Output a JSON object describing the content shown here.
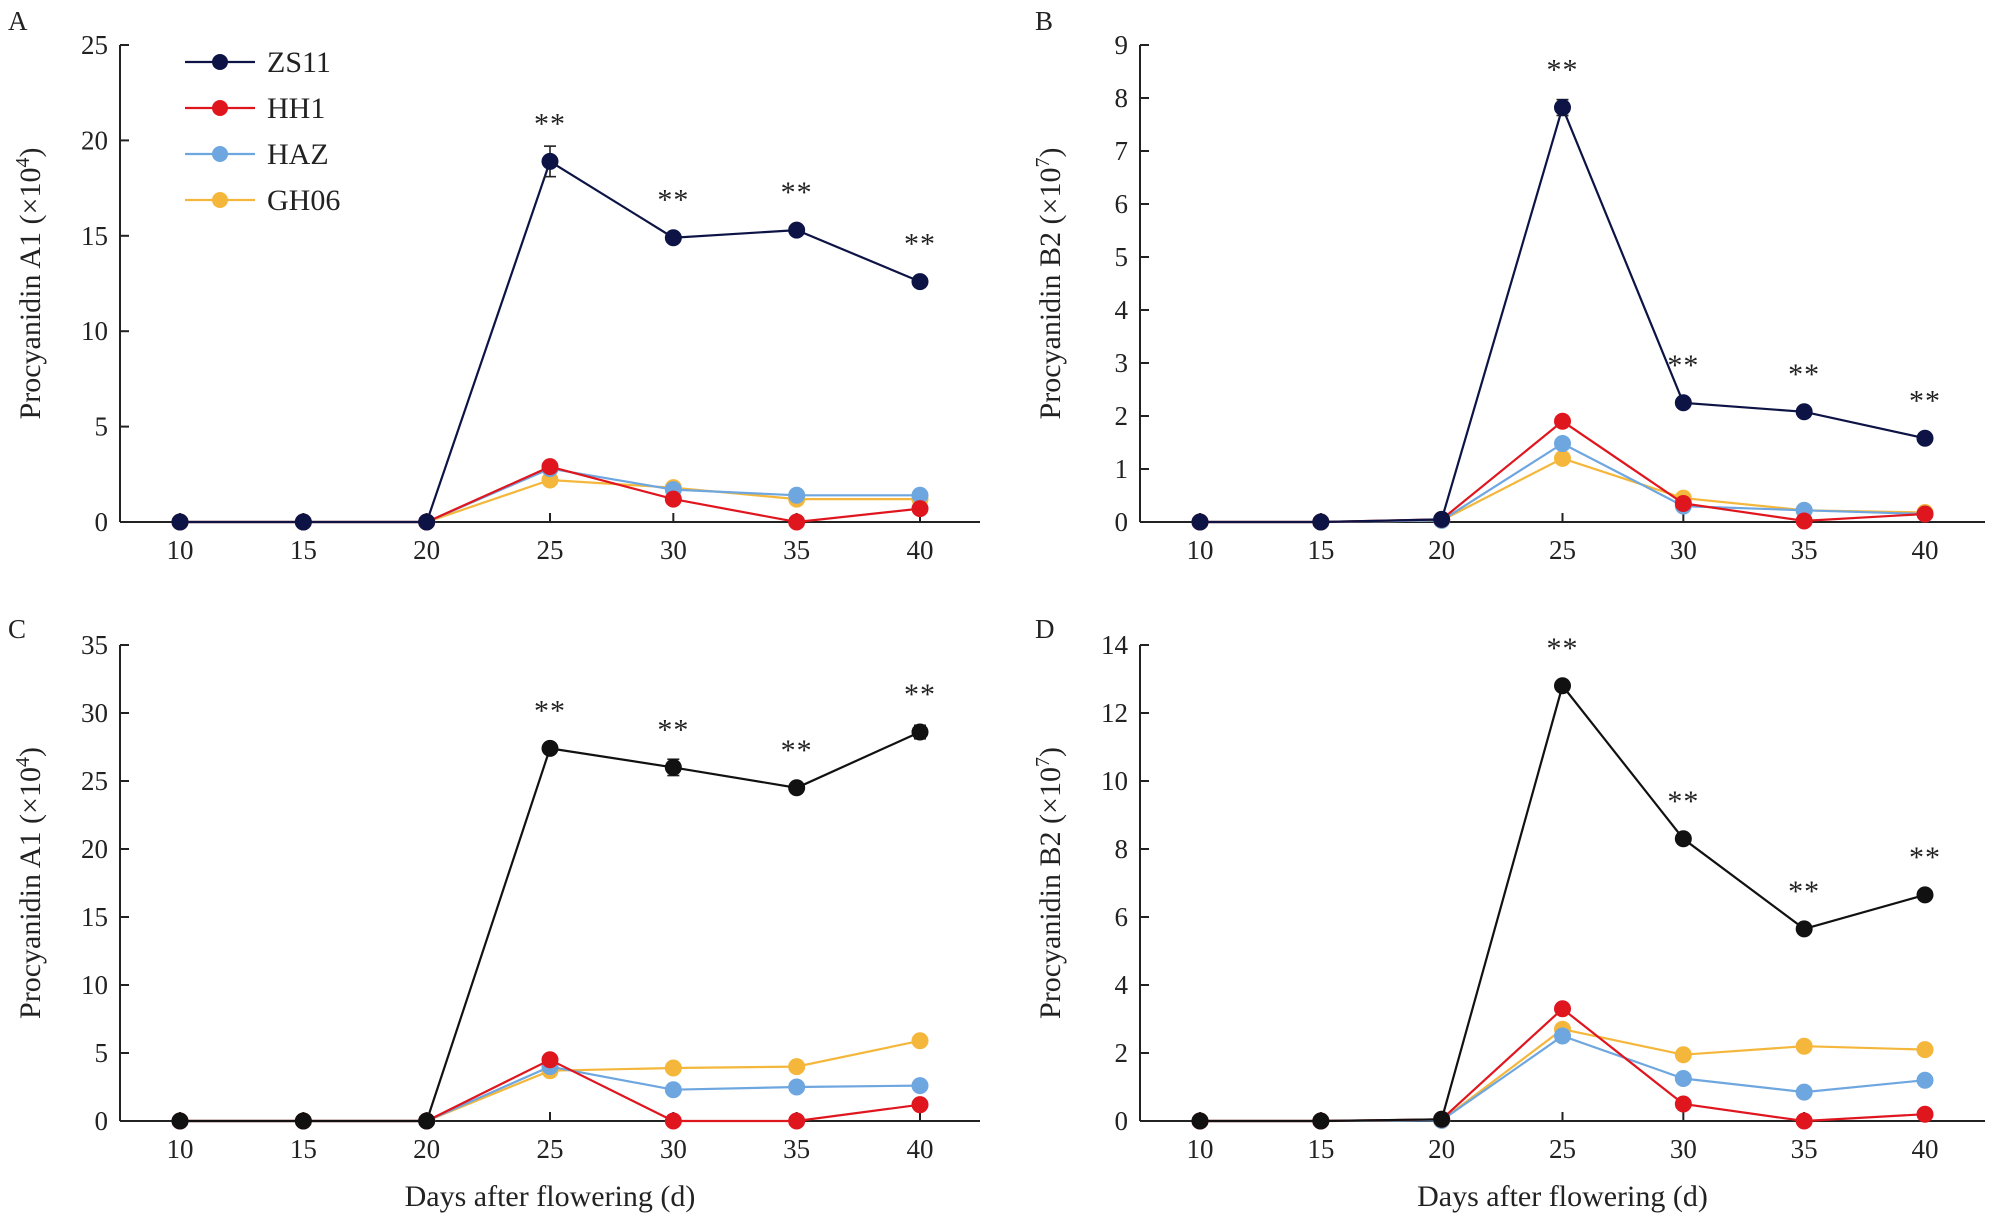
{
  "chart_data": [
    {
      "panel": "A",
      "type": "line",
      "xlabel": "",
      "ylabel": "Procyanidin A1 (×10⁴)",
      "ylabel_main": "Procyanidin A1 (×10",
      "ylabel_exp": "4",
      "ylim": [
        0,
        25
      ],
      "yticks": [
        0,
        5,
        10,
        15,
        20,
        25
      ],
      "x": [
        10,
        15,
        20,
        25,
        30,
        35,
        40
      ],
      "xticks": [
        10,
        15,
        20,
        25,
        30,
        35,
        40
      ],
      "series": [
        {
          "name": "ZS11",
          "color": "#0d1445",
          "values": [
            0,
            0,
            0,
            18.9,
            14.9,
            15.3,
            12.6
          ],
          "errors": [
            0,
            0,
            0,
            0.8,
            0.2,
            0.2,
            0.2
          ]
        },
        {
          "name": "HH1",
          "color": "#e0161f",
          "values": [
            0,
            0,
            0,
            2.9,
            1.2,
            0,
            0.7
          ]
        },
        {
          "name": "HAZ",
          "color": "#6ea6e0",
          "values": [
            0,
            0,
            0,
            2.8,
            1.7,
            1.4,
            1.4
          ]
        },
        {
          "name": "GH06",
          "color": "#f4b73b",
          "values": [
            0,
            0,
            0,
            2.2,
            1.8,
            1.2,
            1.2
          ]
        }
      ],
      "annotations": [
        {
          "x": 25,
          "y": 18.9,
          "text": "**"
        },
        {
          "x": 30,
          "y": 14.9,
          "text": "**"
        },
        {
          "x": 35,
          "y": 15.3,
          "text": "**"
        },
        {
          "x": 40,
          "y": 12.6,
          "text": "**"
        }
      ]
    },
    {
      "panel": "B",
      "type": "line",
      "xlabel": "",
      "ylabel": "Procyanidin B2 (×10⁷)",
      "ylabel_main": "Procyanidin B2 (×10",
      "ylabel_exp": "7",
      "ylim": [
        0,
        9
      ],
      "yticks": [
        0,
        1,
        2,
        3,
        4,
        5,
        6,
        7,
        8,
        9
      ],
      "x": [
        10,
        15,
        20,
        25,
        30,
        35,
        40
      ],
      "xticks": [
        10,
        15,
        20,
        25,
        30,
        35,
        40
      ],
      "series": [
        {
          "name": "ZS11",
          "color": "#0d1445",
          "values": [
            0,
            0,
            0.05,
            7.82,
            2.25,
            2.08,
            1.58
          ],
          "errors": [
            0,
            0,
            0,
            0.15,
            0.04,
            0.04,
            0.04
          ]
        },
        {
          "name": "HH1",
          "color": "#e0161f",
          "values": [
            0,
            0,
            0.05,
            1.9,
            0.35,
            0.02,
            0.15
          ]
        },
        {
          "name": "HAZ",
          "color": "#6ea6e0",
          "values": [
            0,
            0,
            0.03,
            1.48,
            0.3,
            0.22,
            0.15
          ]
        },
        {
          "name": "GH06",
          "color": "#f4b73b",
          "values": [
            0,
            0,
            0.03,
            1.2,
            0.45,
            0.22,
            0.18
          ]
        }
      ],
      "annotations": [
        {
          "x": 25,
          "y": 7.82,
          "text": "**"
        },
        {
          "x": 30,
          "y": 2.25,
          "text": "**"
        },
        {
          "x": 35,
          "y": 2.08,
          "text": "**"
        },
        {
          "x": 40,
          "y": 1.58,
          "text": "**"
        }
      ]
    },
    {
      "panel": "C",
      "type": "line",
      "xlabel": "Days after flowering (d)",
      "ylabel": "Procyanidin A1 (×10⁴)",
      "ylabel_main": "Procyanidin A1 (×10",
      "ylabel_exp": "4",
      "ylim": [
        0,
        35
      ],
      "yticks": [
        0,
        5,
        10,
        15,
        20,
        25,
        30,
        35
      ],
      "x": [
        10,
        15,
        20,
        25,
        30,
        35,
        40
      ],
      "xticks": [
        10,
        15,
        20,
        25,
        30,
        35,
        40
      ],
      "series": [
        {
          "name": "ZS11",
          "color": "#111111",
          "values": [
            0,
            0,
            0,
            27.4,
            26.0,
            24.5,
            28.6
          ],
          "errors": [
            0,
            0,
            0,
            0.3,
            0.6,
            0.4,
            0.5
          ]
        },
        {
          "name": "HH1",
          "color": "#e0161f",
          "values": [
            0,
            0,
            0,
            4.5,
            0,
            0,
            1.2
          ]
        },
        {
          "name": "HAZ",
          "color": "#6ea6e0",
          "values": [
            0,
            0,
            0,
            4.0,
            2.3,
            2.5,
            2.6
          ]
        },
        {
          "name": "GH06",
          "color": "#f4b73b",
          "values": [
            0,
            0,
            0,
            3.7,
            3.9,
            4.0,
            5.9
          ]
        }
      ],
      "annotations": [
        {
          "x": 25,
          "y": 27.4,
          "text": "**"
        },
        {
          "x": 30,
          "y": 26.0,
          "text": "**"
        },
        {
          "x": 35,
          "y": 24.5,
          "text": "**"
        },
        {
          "x": 40,
          "y": 28.6,
          "text": "**"
        }
      ]
    },
    {
      "panel": "D",
      "type": "line",
      "xlabel": "Days after flowering (d)",
      "ylabel": "Procyanidin B2 (×10⁷)",
      "ylabel_main": "Procyanidin B2 (×10",
      "ylabel_exp": "7",
      "ylim": [
        0,
        14
      ],
      "yticks": [
        0,
        2,
        4,
        6,
        8,
        10,
        12,
        14
      ],
      "x": [
        10,
        15,
        20,
        25,
        30,
        35,
        40
      ],
      "xticks": [
        10,
        15,
        20,
        25,
        30,
        35,
        40
      ],
      "series": [
        {
          "name": "ZS11",
          "color": "#111111",
          "values": [
            0,
            0,
            0.05,
            12.8,
            8.3,
            5.65,
            6.65
          ],
          "errors": [
            0,
            0,
            0,
            0.1,
            0.1,
            0.1,
            0.1
          ]
        },
        {
          "name": "HH1",
          "color": "#e0161f",
          "values": [
            0,
            0,
            0.05,
            3.3,
            0.5,
            0,
            0.2
          ]
        },
        {
          "name": "HAZ",
          "color": "#6ea6e0",
          "values": [
            0,
            0,
            0.02,
            2.5,
            1.25,
            0.85,
            1.2
          ]
        },
        {
          "name": "GH06",
          "color": "#f4b73b",
          "values": [
            0,
            0,
            0.02,
            2.7,
            1.95,
            2.2,
            2.1
          ]
        }
      ],
      "annotations": [
        {
          "x": 25,
          "y": 12.8,
          "text": "**"
        },
        {
          "x": 30,
          "y": 8.3,
          "text": "**"
        },
        {
          "x": 35,
          "y": 5.65,
          "text": "**"
        },
        {
          "x": 40,
          "y": 6.65,
          "text": "**"
        }
      ]
    }
  ],
  "legend": {
    "placement": "top-left of panel A",
    "items": [
      {
        "name": "ZS11",
        "color": "#0d1445"
      },
      {
        "name": "HH1",
        "color": "#e0161f"
      },
      {
        "name": "HAZ",
        "color": "#6ea6e0"
      },
      {
        "name": "GH06",
        "color": "#f4b73b"
      }
    ]
  }
}
